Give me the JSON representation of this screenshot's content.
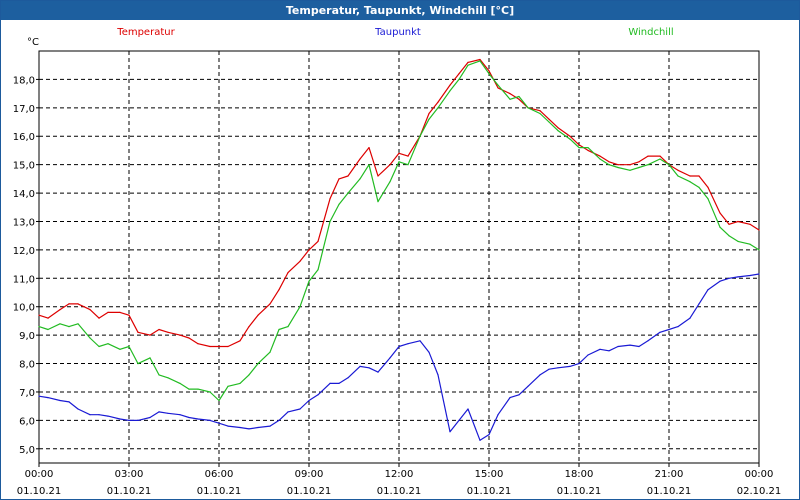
{
  "window": {
    "title": "Temperatur, Taupunkt, Windchill [°C]"
  },
  "chart_data": {
    "type": "line",
    "title": "Temperatur, Taupunkt, Windchill [°C]",
    "ylabel": "°C",
    "xlabel": "",
    "xlim": [
      0,
      24
    ],
    "ylim": [
      4.5,
      19.0
    ],
    "grid": true,
    "legend": "top",
    "yticks": [
      5.0,
      6.0,
      7.0,
      8.0,
      9.0,
      10.0,
      11.0,
      12.0,
      13.0,
      14.0,
      15.0,
      16.0,
      17.0,
      18.0
    ],
    "ytick_labels": [
      "5,0",
      "6,0",
      "7,0",
      "8,0",
      "9,0",
      "10,0",
      "11,0",
      "12,0",
      "13,0",
      "14,0",
      "15,0",
      "16,0",
      "17,0",
      "18,0"
    ],
    "xticks": [
      0,
      3,
      6,
      9,
      12,
      15,
      18,
      21,
      24
    ],
    "xtick_times": [
      "00:00",
      "03:00",
      "06:00",
      "09:00",
      "12:00",
      "15:00",
      "18:00",
      "21:00",
      "00:00"
    ],
    "xtick_dates": [
      "01.10.21",
      "01.10.21",
      "01.10.21",
      "01.10.21",
      "01.10.21",
      "01.10.21",
      "01.10.21",
      "01.10.21",
      "02.10.21"
    ],
    "series": [
      {
        "name": "Temperatur",
        "color": "#dd0000",
        "x": [
          0,
          0.3,
          0.7,
          1.0,
          1.3,
          1.7,
          2.0,
          2.3,
          2.7,
          3.0,
          3.3,
          3.7,
          4.0,
          4.3,
          4.7,
          5.0,
          5.3,
          5.7,
          6.0,
          6.3,
          6.7,
          7.0,
          7.3,
          7.7,
          8.0,
          8.3,
          8.7,
          9.0,
          9.3,
          9.7,
          10.0,
          10.3,
          10.7,
          11.0,
          11.3,
          11.7,
          12.0,
          12.3,
          12.7,
          13.0,
          13.3,
          13.7,
          14.0,
          14.3,
          14.7,
          15.0,
          15.3,
          15.7,
          16.0,
          16.3,
          16.7,
          17.0,
          17.3,
          17.7,
          18.0,
          18.3,
          18.7,
          19.0,
          19.3,
          19.7,
          20.0,
          20.3,
          20.7,
          21.0,
          21.3,
          21.7,
          22.0,
          22.3,
          22.7,
          23.0,
          23.3,
          23.7,
          24.0
        ],
        "values": [
          9.7,
          9.6,
          9.9,
          10.1,
          10.1,
          9.9,
          9.6,
          9.8,
          9.8,
          9.7,
          9.1,
          9.0,
          9.2,
          9.1,
          9.0,
          8.9,
          8.7,
          8.6,
          8.6,
          8.6,
          8.8,
          9.3,
          9.7,
          10.1,
          10.6,
          11.2,
          11.6,
          12.0,
          12.3,
          13.8,
          14.5,
          14.6,
          15.2,
          15.6,
          14.6,
          15.0,
          15.4,
          15.3,
          16.0,
          16.8,
          17.2,
          17.8,
          18.2,
          18.6,
          18.7,
          18.3,
          17.7,
          17.5,
          17.3,
          17.0,
          16.9,
          16.6,
          16.3,
          16.0,
          15.7,
          15.5,
          15.3,
          15.1,
          15.0,
          15.0,
          15.1,
          15.3,
          15.3,
          15.0,
          14.8,
          14.6,
          14.6,
          14.2,
          13.3,
          12.9,
          13.0,
          12.9,
          12.7
        ]
      },
      {
        "name": "Taupunkt",
        "color": "#1a1ad4",
        "x": [
          0,
          0.3,
          0.7,
          1.0,
          1.3,
          1.7,
          2.0,
          2.3,
          2.7,
          3.0,
          3.3,
          3.7,
          4.0,
          4.3,
          4.7,
          5.0,
          5.3,
          5.7,
          6.0,
          6.3,
          6.7,
          7.0,
          7.3,
          7.7,
          8.0,
          8.3,
          8.7,
          9.0,
          9.3,
          9.7,
          10.0,
          10.3,
          10.7,
          11.0,
          11.3,
          11.7,
          12.0,
          12.3,
          12.7,
          13.0,
          13.3,
          13.7,
          14.0,
          14.3,
          14.7,
          15.0,
          15.3,
          15.7,
          16.0,
          16.3,
          16.7,
          17.0,
          17.3,
          17.7,
          18.0,
          18.3,
          18.7,
          19.0,
          19.3,
          19.7,
          20.0,
          20.3,
          20.7,
          21.0,
          21.3,
          21.7,
          22.0,
          22.3,
          22.7,
          23.0,
          23.3,
          23.7,
          24.0
        ],
        "values": [
          6.85,
          6.8,
          6.7,
          6.65,
          6.4,
          6.2,
          6.2,
          6.15,
          6.05,
          6.0,
          6.0,
          6.1,
          6.3,
          6.25,
          6.2,
          6.1,
          6.05,
          6.0,
          5.9,
          5.8,
          5.75,
          5.7,
          5.75,
          5.8,
          6.0,
          6.3,
          6.4,
          6.7,
          6.9,
          7.3,
          7.3,
          7.5,
          7.9,
          7.85,
          7.7,
          8.2,
          8.6,
          8.7,
          8.8,
          8.4,
          7.6,
          5.6,
          6.0,
          6.4,
          5.3,
          5.5,
          6.2,
          6.8,
          6.9,
          7.2,
          7.6,
          7.8,
          7.85,
          7.9,
          8.0,
          8.3,
          8.5,
          8.45,
          8.6,
          8.65,
          8.6,
          8.8,
          9.1,
          9.2,
          9.3,
          9.6,
          10.1,
          10.6,
          10.9,
          11.0,
          11.05,
          11.1,
          11.15
        ]
      },
      {
        "name": "Windchill",
        "color": "#22bb22",
        "x": [
          0,
          0.3,
          0.7,
          1.0,
          1.3,
          1.7,
          2.0,
          2.3,
          2.7,
          3.0,
          3.3,
          3.7,
          4.0,
          4.3,
          4.7,
          5.0,
          5.3,
          5.7,
          6.0,
          6.3,
          6.7,
          7.0,
          7.3,
          7.7,
          8.0,
          8.3,
          8.7,
          9.0,
          9.3,
          9.7,
          10.0,
          10.3,
          10.7,
          11.0,
          11.3,
          11.7,
          12.0,
          12.3,
          12.7,
          13.0,
          13.3,
          13.7,
          14.0,
          14.3,
          14.7,
          15.0,
          15.3,
          15.7,
          16.0,
          16.3,
          16.7,
          17.0,
          17.3,
          17.7,
          18.0,
          18.3,
          18.7,
          19.0,
          19.3,
          19.7,
          20.0,
          20.3,
          20.7,
          21.0,
          21.3,
          21.7,
          22.0,
          22.3,
          22.7,
          23.0,
          23.3,
          23.7,
          24.0
        ],
        "values": [
          9.3,
          9.2,
          9.4,
          9.3,
          9.4,
          8.9,
          8.6,
          8.7,
          8.5,
          8.6,
          8.0,
          8.2,
          7.6,
          7.5,
          7.3,
          7.1,
          7.1,
          7.0,
          6.7,
          7.2,
          7.3,
          7.6,
          8.0,
          8.4,
          9.2,
          9.3,
          10.0,
          10.9,
          11.3,
          13.0,
          13.6,
          14.0,
          14.5,
          15.0,
          13.7,
          14.4,
          15.1,
          15.0,
          16.0,
          16.6,
          17.0,
          17.6,
          18.0,
          18.5,
          18.65,
          18.2,
          17.8,
          17.3,
          17.4,
          17.0,
          16.8,
          16.5,
          16.2,
          15.9,
          15.6,
          15.6,
          15.2,
          15.0,
          14.9,
          14.8,
          14.9,
          15.0,
          15.2,
          15.0,
          14.6,
          14.4,
          14.2,
          13.8,
          12.8,
          12.5,
          12.3,
          12.2,
          12.0
        ]
      }
    ]
  }
}
